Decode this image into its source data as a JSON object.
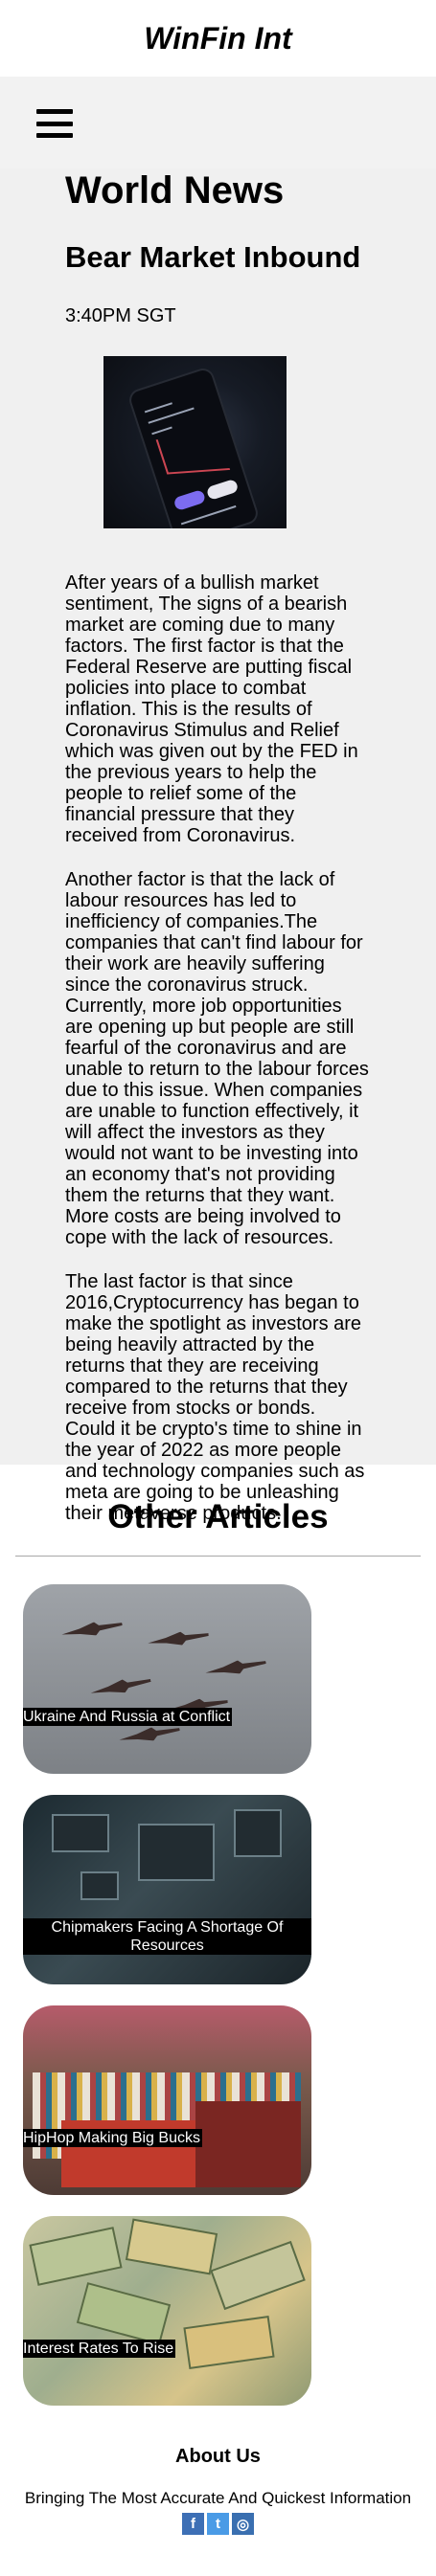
{
  "site": {
    "title": "WinFin Int"
  },
  "nav": {
    "menu_icon": "hamburger-menu-icon"
  },
  "article": {
    "section": "World News",
    "title": "Bear Market Inbound",
    "time": "3:40PM SGT",
    "image_icon": "phone-stock-chart-photo",
    "paragraphs": [
      "After years of a bullish market sentiment, The signs of a bearish market are coming due to many factors. The first factor is that the Federal Reserve are putting fiscal policies into place to combat inflation. This is the results of Coronavirus Stimulus and Relief which was given out by the FED in the previous years to help the people to relief some of the financial pressure that they received from Coronavirus.",
      "Another factor is that the lack of labour resources has led to inefficiency of companies.The companies that can't find labour for their work are heavily suffering since the coronavirus struck. Currently, more job opportunities are opening up but people are still fearful of the coronavirus and are unable to return to the labour forces due to this issue. When companies are unable to function effectively, it will affect the investors as they would not want to be investing into an economy that's not providing them the returns that they want. More costs are being involved to cope with the lack of resources.",
      "The last factor is that since 2016,Cryptocurrency has began to make the spotlight as investors are being heavily attracted by the returns that they are receiving compared to the returns that they receive from stocks or bonds. Could it be crypto's time to shine in the year of 2022 as more people and technology companies such as meta are going to be unleashing their metaverse products."
    ]
  },
  "other_articles": {
    "heading": "Other Articles",
    "cards": [
      {
        "caption": "Ukraine And Russia at Conflict",
        "image_icon": "fighter-jets-photo"
      },
      {
        "caption": "Chipmakers Facing A Shortage Of Resources",
        "image_icon": "circuit-board-photo"
      },
      {
        "caption": "HipHop Making Big Bucks",
        "image_icon": "vinyl-records-photo"
      },
      {
        "caption": "Interest Rates To Rise",
        "image_icon": "banknotes-photo"
      }
    ]
  },
  "footer": {
    "about": "About Us",
    "tagline": "Bringing The Most Accurate And Quickest Information",
    "socials": [
      {
        "glyph": "f",
        "icon": "facebook-icon"
      },
      {
        "glyph": "t",
        "icon": "twitter-icon"
      },
      {
        "glyph": "◎",
        "icon": "instagram-icon"
      }
    ]
  }
}
